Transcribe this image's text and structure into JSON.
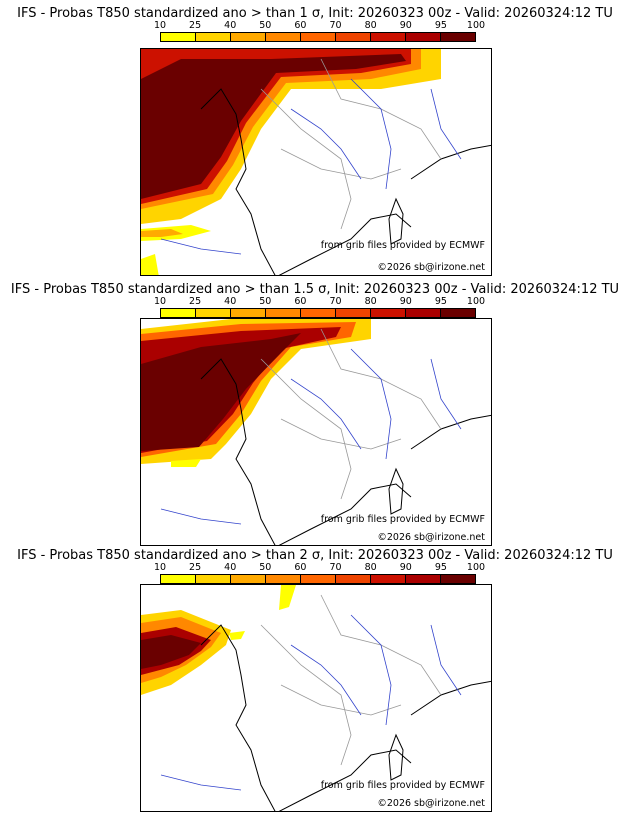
{
  "colorbar": {
    "ticks": [
      "10",
      "25",
      "40",
      "50",
      "60",
      "70",
      "80",
      "90",
      "95",
      "100"
    ],
    "colors": [
      "#ffff00",
      "#ffd400",
      "#ffaa00",
      "#ff8800",
      "#ff6600",
      "#ee4400",
      "#cc1100",
      "#aa0000",
      "#6a0000"
    ]
  },
  "panels": [
    {
      "title": "IFS - Probas T850  standardized ano > than 1 σ, Init: 20260323 00z - Valid: 20260324:12 TU",
      "credit_source": "from grib files provided by ECMWF",
      "credit_author": "©2026 sb@irizone.net"
    },
    {
      "title": "IFS - Probas T850  standardized ano > than 1.5 σ, Init: 20260323 00z - Valid: 20260324:12 TU",
      "credit_source": "from grib files provided by ECMWF",
      "credit_author": "©2026 sb@irizone.net"
    },
    {
      "title": "IFS - Probas T850  standardized ano > than 2 σ, Init: 20260323 00z - Valid: 20260324:12 TU",
      "credit_source": "from grib files provided by ECMWF",
      "credit_author": "©2026 sb@irizone.net"
    }
  ]
}
